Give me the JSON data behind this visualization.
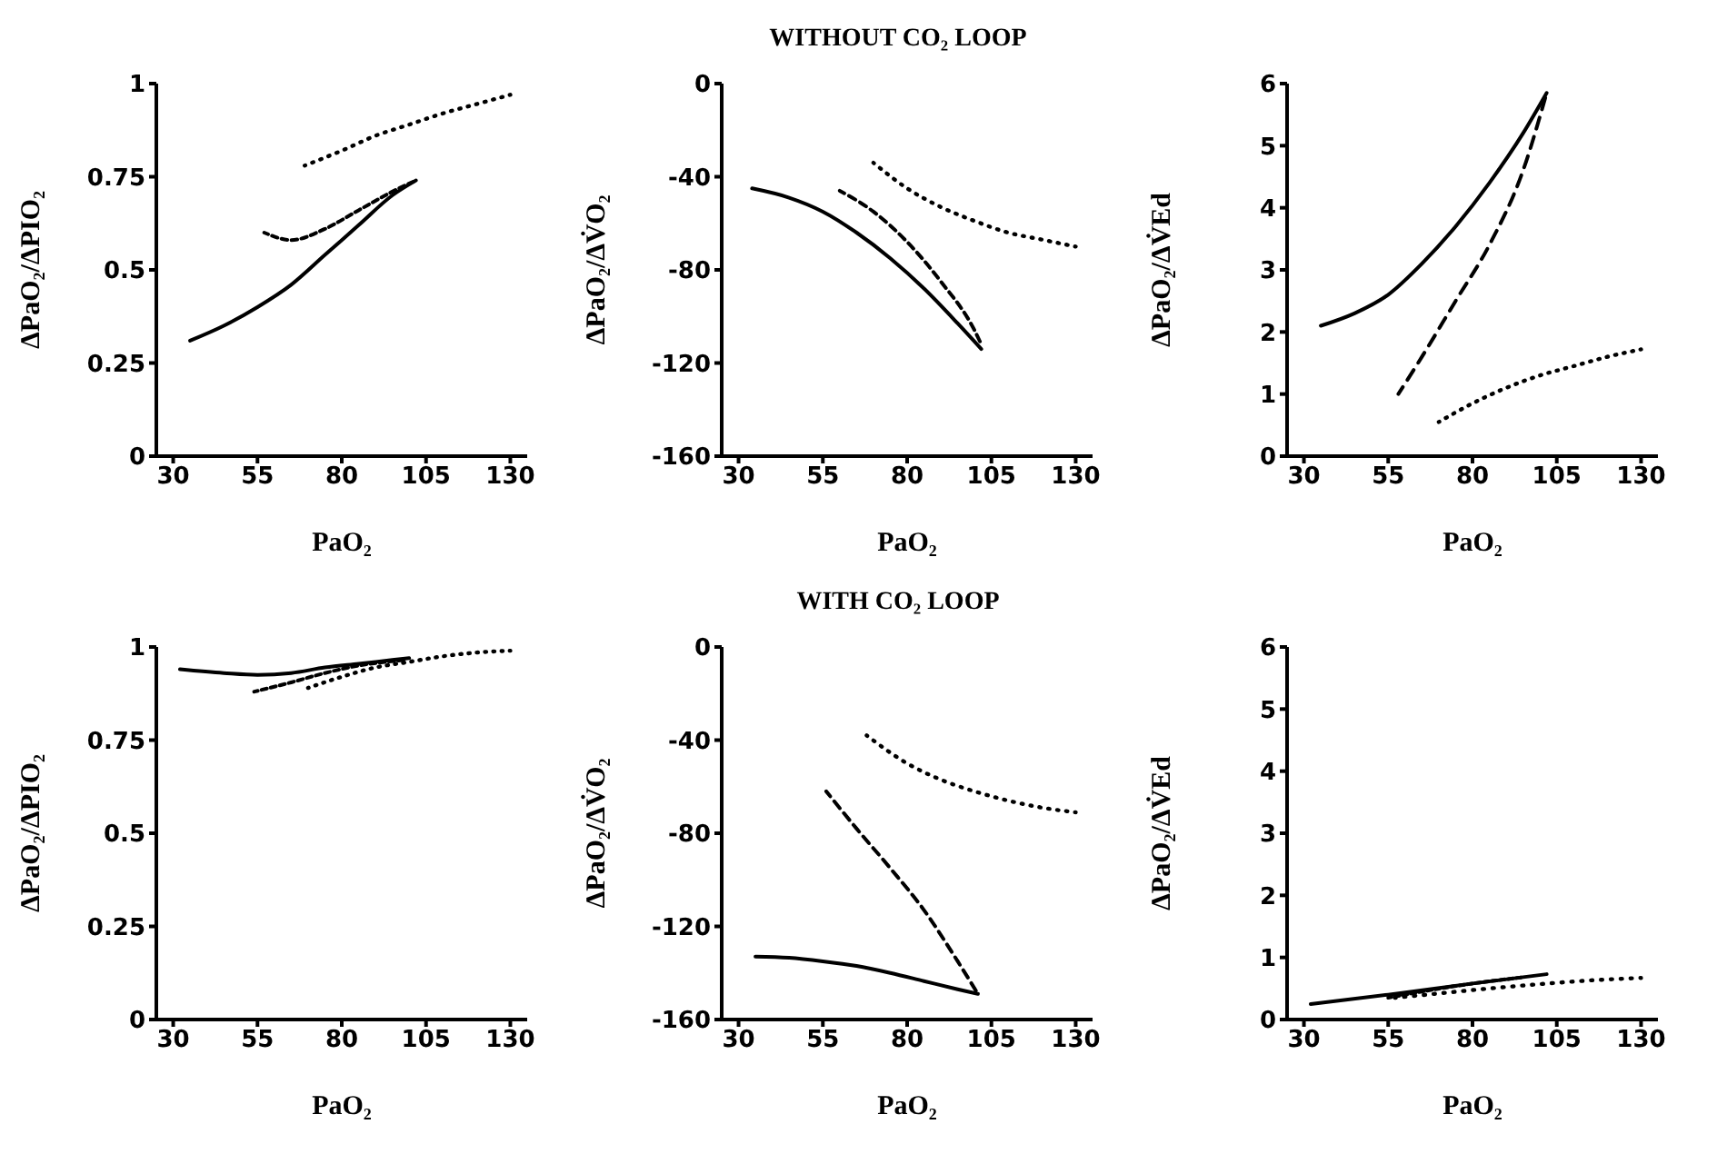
{
  "chart_data": [
    {
      "type": "line",
      "xlabel": "PaO₂",
      "ylabel": "ΔPaO₂/ΔPIO₂",
      "xlim": [
        25,
        135
      ],
      "xticks": [
        30,
        55,
        80,
        105,
        130
      ],
      "ylim": [
        0,
        1
      ],
      "yticks": [
        0,
        0.25,
        0.5,
        0.75,
        1
      ],
      "series": [
        {
          "color": "#000000",
          "line_style": "solid",
          "x": [
            35,
            45,
            55,
            65,
            75,
            85,
            95,
            102
          ],
          "values": [
            0.31,
            0.35,
            0.4,
            0.46,
            0.54,
            0.62,
            0.7,
            0.74
          ]
        },
        {
          "color": "#000000",
          "line_style": "dashed",
          "x": [
            57,
            65,
            75,
            85,
            95,
            102
          ],
          "values": [
            0.6,
            0.58,
            0.61,
            0.66,
            0.71,
            0.74
          ]
        },
        {
          "color": "#000000",
          "line_style": "dotted",
          "x": [
            69,
            80,
            90,
            100,
            110,
            120,
            130
          ],
          "values": [
            0.78,
            0.82,
            0.86,
            0.89,
            0.92,
            0.945,
            0.97
          ]
        }
      ]
    },
    {
      "type": "line",
      "title": "WITHOUT CO₂ LOOP",
      "xlabel": "PaO₂",
      "ylabel": "ΔPaO₂/ΔV̇O₂",
      "xlim": [
        25,
        135
      ],
      "xticks": [
        30,
        55,
        80,
        105,
        130
      ],
      "ylim": [
        -160,
        0
      ],
      "yticks": [
        -160,
        -120,
        -80,
        -40,
        0
      ],
      "series": [
        {
          "color": "#000000",
          "line_style": "solid",
          "x": [
            34,
            45,
            55,
            65,
            75,
            85,
            95,
            102
          ],
          "values": [
            -45,
            -49,
            -55,
            -64,
            -75,
            -88,
            -103,
            -114
          ]
        },
        {
          "color": "#000000",
          "line_style": "dashed",
          "x": [
            60,
            70,
            80,
            90,
            100,
            102
          ],
          "values": [
            -46,
            -55,
            -68,
            -85,
            -106,
            -112
          ]
        },
        {
          "color": "#000000",
          "line_style": "dotted",
          "x": [
            70,
            80,
            90,
            100,
            110,
            120,
            130
          ],
          "values": [
            -34,
            -45,
            -53,
            -59,
            -64,
            -67,
            -70
          ]
        }
      ]
    },
    {
      "type": "line",
      "xlabel": "PaO₂",
      "ylabel": "ΔPaO₂/ΔV̇Ed",
      "xlim": [
        25,
        135
      ],
      "xticks": [
        30,
        55,
        80,
        105,
        130
      ],
      "ylim": [
        0,
        6
      ],
      "yticks": [
        0,
        1,
        2,
        3,
        4,
        5,
        6
      ],
      "series": [
        {
          "color": "#000000",
          "line_style": "solid",
          "x": [
            35,
            45,
            55,
            65,
            75,
            85,
            95,
            102
          ],
          "values": [
            2.1,
            2.3,
            2.6,
            3.1,
            3.7,
            4.4,
            5.2,
            5.85
          ]
        },
        {
          "color": "#000000",
          "line_style": "dashed",
          "x": [
            58,
            65,
            75,
            85,
            95,
            102
          ],
          "values": [
            1.0,
            1.6,
            2.5,
            3.4,
            4.6,
            5.85
          ]
        },
        {
          "color": "#000000",
          "line_style": "dotted",
          "x": [
            70,
            80,
            90,
            100,
            110,
            120,
            130
          ],
          "values": [
            0.55,
            0.85,
            1.1,
            1.3,
            1.45,
            1.6,
            1.72
          ]
        }
      ]
    },
    {
      "type": "line",
      "xlabel": "PaO₂",
      "ylabel": "ΔPaO₂/ΔPIO₂",
      "xlim": [
        25,
        135
      ],
      "xticks": [
        30,
        55,
        80,
        105,
        130
      ],
      "ylim": [
        0,
        1
      ],
      "yticks": [
        0,
        0.25,
        0.5,
        0.75,
        1
      ],
      "series": [
        {
          "color": "#000000",
          "line_style": "solid",
          "x": [
            32,
            45,
            55,
            65,
            75,
            85,
            95,
            100
          ],
          "values": [
            0.94,
            0.93,
            0.925,
            0.93,
            0.945,
            0.955,
            0.965,
            0.97
          ]
        },
        {
          "color": "#000000",
          "line_style": "dashed",
          "x": [
            54,
            65,
            75,
            85,
            99
          ],
          "values": [
            0.88,
            0.905,
            0.93,
            0.95,
            0.965
          ]
        },
        {
          "color": "#000000",
          "line_style": "dotted",
          "x": [
            70,
            80,
            90,
            100,
            110,
            120,
            130
          ],
          "values": [
            0.89,
            0.92,
            0.945,
            0.96,
            0.975,
            0.985,
            0.99
          ]
        }
      ]
    },
    {
      "type": "line",
      "title": "WITH CO₂ LOOP",
      "xlabel": "PaO₂",
      "ylabel": "ΔPaO₂/ΔV̇O₂",
      "xlim": [
        25,
        135
      ],
      "xticks": [
        30,
        55,
        80,
        105,
        130
      ],
      "ylim": [
        -160,
        0
      ],
      "yticks": [
        -160,
        -120,
        -80,
        -40,
        0
      ],
      "series": [
        {
          "color": "#000000",
          "line_style": "solid",
          "x": [
            35,
            45,
            55,
            65,
            75,
            85,
            95,
            101
          ],
          "values": [
            -133,
            -133.5,
            -135,
            -137,
            -140,
            -143.5,
            -147,
            -149
          ]
        },
        {
          "color": "#000000",
          "line_style": "dashed",
          "x": [
            56,
            65,
            75,
            85,
            95,
            101
          ],
          "values": [
            -62,
            -78,
            -95,
            -113,
            -135,
            -149
          ]
        },
        {
          "color": "#000000",
          "line_style": "dotted",
          "x": [
            68,
            80,
            90,
            100,
            110,
            120,
            130
          ],
          "values": [
            -38,
            -50,
            -57,
            -62,
            -66,
            -69,
            -71
          ]
        }
      ]
    },
    {
      "type": "line",
      "xlabel": "PaO₂",
      "ylabel": "ΔPaO₂/ΔV̇Ed",
      "xlim": [
        25,
        135
      ],
      "xticks": [
        30,
        55,
        80,
        105,
        130
      ],
      "ylim": [
        0,
        6
      ],
      "yticks": [
        0,
        1,
        2,
        3,
        4,
        5,
        6
      ],
      "series": [
        {
          "color": "#000000",
          "line_style": "solid",
          "x": [
            32,
            55,
            80,
            102
          ],
          "values": [
            0.25,
            0.4,
            0.58,
            0.73
          ]
        },
        {
          "color": "#000000",
          "line_style": "dashed",
          "x": [
            55,
            65,
            80,
            95
          ],
          "values": [
            0.35,
            0.45,
            0.58,
            0.68
          ]
        },
        {
          "color": "#000000",
          "line_style": "dotted",
          "x": [
            57,
            70,
            85,
            100,
            115,
            130
          ],
          "values": [
            0.35,
            0.42,
            0.5,
            0.57,
            0.63,
            0.67
          ]
        }
      ]
    }
  ]
}
